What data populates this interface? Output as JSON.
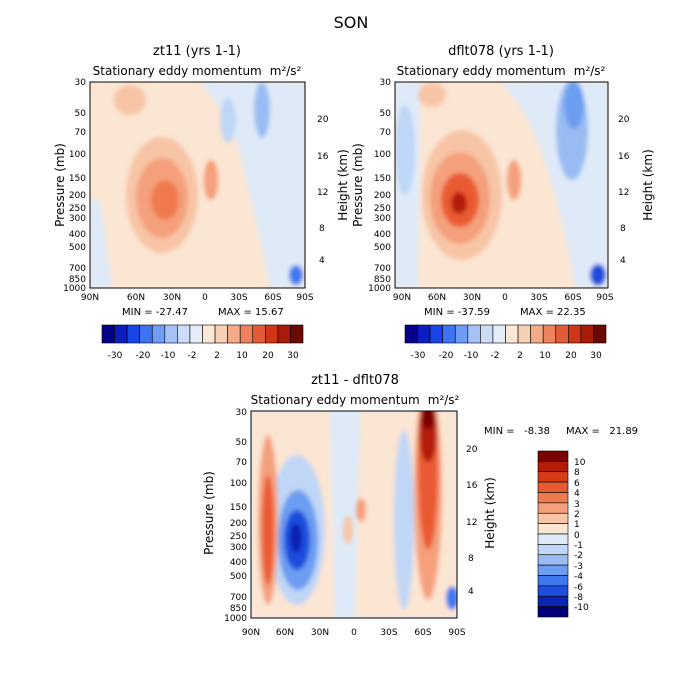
{
  "figure_title": "SON",
  "chart_data": [
    {
      "type": "heatmap",
      "title": "zt11 (yrs 1-1)",
      "subtitle": "Stationary eddy momentum",
      "units": "m²/s²",
      "xlabel": "",
      "ylabel": "Pressure (mb)",
      "y2label": "Height (km)",
      "x_ticks": [
        "90N",
        "60N",
        "30N",
        "0",
        "30S",
        "60S",
        "90S"
      ],
      "y_ticks": [
        "30",
        "50",
        "70",
        "100",
        "150",
        "200",
        "250",
        "300",
        "400",
        "500",
        "700",
        "850",
        "1000"
      ],
      "y2_ticks": [
        "4",
        "8",
        "12",
        "16",
        "20"
      ],
      "min_label": "MIN = -27.47",
      "max_label": "MAX = 15.67",
      "min": -27.47,
      "max": 15.67,
      "features": [
        {
          "lat": 38,
          "p": 250,
          "value": 14,
          "note": "subtropical NH maximum"
        },
        {
          "lat": 2,
          "p": 200,
          "value": 5,
          "note": "equatorial positive"
        },
        {
          "lat": 85,
          "p": 950,
          "value": -27.47,
          "note": "near-surface SH polar minimum"
        }
      ]
    },
    {
      "type": "heatmap",
      "title": "dflt078 (yrs 1-1)",
      "subtitle": "Stationary eddy momentum",
      "units": "m²/s²",
      "xlabel": "",
      "ylabel": "Pressure (mb)",
      "y2label": "Height (km)",
      "x_ticks": [
        "90N",
        "60N",
        "30N",
        "0",
        "30S",
        "60S",
        "90S"
      ],
      "y_ticks": [
        "30",
        "50",
        "70",
        "100",
        "150",
        "200",
        "250",
        "300",
        "400",
        "500",
        "700",
        "850",
        "1000"
      ],
      "y2_ticks": [
        "4",
        "8",
        "12",
        "16",
        "20"
      ],
      "min_label": "MIN = -37.59",
      "max_label": "MAX = 22.35",
      "min": -37.59,
      "max": 22.35,
      "features": [
        {
          "lat": 40,
          "p": 250,
          "value": 22.35,
          "note": "subtropical NH maximum"
        },
        {
          "lat": 65,
          "p": 50,
          "value": -12,
          "note": "SH stratospheric negative"
        },
        {
          "lat": 85,
          "p": 950,
          "value": -37.59,
          "note": "near-surface SH polar minimum"
        }
      ]
    },
    {
      "type": "heatmap",
      "title": "zt11 - dflt078",
      "subtitle": "Stationary eddy momentum",
      "units": "m²/s²",
      "xlabel": "",
      "ylabel": "Pressure (mb)",
      "y2label": "Height (km)",
      "x_ticks": [
        "90N",
        "60N",
        "30N",
        "0",
        "30S",
        "60S",
        "90S"
      ],
      "y_ticks": [
        "30",
        "50",
        "70",
        "100",
        "150",
        "200",
        "250",
        "300",
        "400",
        "500",
        "700",
        "850",
        "1000"
      ],
      "y2_ticks": [
        "4",
        "8",
        "12",
        "16",
        "20"
      ],
      "min_label": "MIN =   -8.38",
      "max_label": "MAX =   21.89",
      "min": -8.38,
      "max": 21.89,
      "features": [
        {
          "lat": 70,
          "p": 300,
          "value": 4,
          "note": "NH high-latitude positive band"
        },
        {
          "lat": 42,
          "p": 300,
          "value": -8.38,
          "note": "NH mid-latitude negative"
        },
        {
          "lat": 62,
          "p": 40,
          "value": 21.89,
          "note": "SH stratospheric positive column"
        }
      ]
    }
  ],
  "colorbars": {
    "small": {
      "labels": [
        "-30",
        "-20",
        "-10",
        "-2",
        "2",
        "10",
        "20",
        "30"
      ],
      "colors": [
        "#04008a",
        "#0c1ec0",
        "#1a45e6",
        "#3d72f2",
        "#6f9cf4",
        "#a4c2f5",
        "#ccdcf7",
        "#e3edf8",
        "#fbe7d6",
        "#f7cfb2",
        "#f2ab86",
        "#ec835e",
        "#e35a37",
        "#cf3517",
        "#a81b07",
        "#6c0a02"
      ]
    },
    "diff": {
      "labels": [
        "10",
        "8",
        "6",
        "4",
        "3",
        "2",
        "1",
        "0",
        "-1",
        "-2",
        "-3",
        "-4",
        "-6",
        "-8",
        "-10"
      ],
      "colors": [
        "#7b0402",
        "#b41c08",
        "#d63a16",
        "#ea5a30",
        "#f07a4e",
        "#f4a07c",
        "#f7c5a6",
        "#fbe5d3",
        "#deeaf8",
        "#bfd6f6",
        "#98bcf2",
        "#6c9df0",
        "#3f77ee",
        "#1f4ddc",
        "#0b24b4",
        "#020079"
      ]
    }
  }
}
